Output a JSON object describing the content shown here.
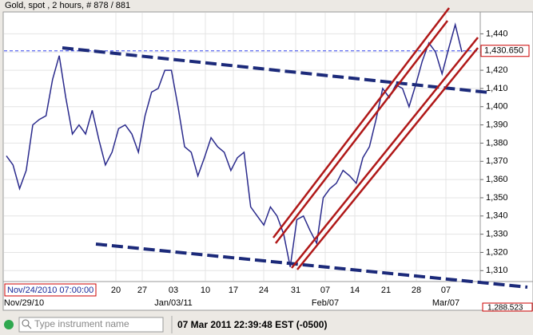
{
  "chart_data": {
    "type": "line",
    "title": "Gold, spot , 2 hours, # 878 / 881",
    "cursor_time": "Nov/24/2010 07:00:00",
    "series": [
      {
        "name": "Gold",
        "color": "#2a2a8c",
        "values": [
          1373,
          1368,
          1355,
          1365,
          1390,
          1393,
          1395,
          1415,
          1428,
          1405,
          1385,
          1390,
          1385,
          1398,
          1382,
          1368,
          1375,
          1388,
          1390,
          1385,
          1375,
          1395,
          1408,
          1410,
          1420,
          1420,
          1400,
          1378,
          1375,
          1362,
          1372,
          1383,
          1378,
          1375,
          1365,
          1372,
          1375,
          1345,
          1340,
          1335,
          1345,
          1340,
          1330,
          1312,
          1338,
          1340,
          1332,
          1325,
          1350,
          1355,
          1358,
          1365,
          1362,
          1358,
          1372,
          1378,
          1393,
          1410,
          1405,
          1412,
          1410,
          1400,
          1412,
          1425,
          1435,
          1430,
          1418,
          1432,
          1445,
          1430
        ]
      }
    ],
    "last_price": {
      "value": 1430.65,
      "label": "1,430.650"
    },
    "low_label": "1,288.523",
    "ylim": [
      1304,
      1452
    ],
    "yticks": [
      {
        "value": 1310,
        "label": "1,310"
      },
      {
        "value": 1320,
        "label": "1,320"
      },
      {
        "value": 1330,
        "label": "1,330"
      },
      {
        "value": 1340,
        "label": "1,340"
      },
      {
        "value": 1350,
        "label": "1,350"
      },
      {
        "value": 1360,
        "label": "1,360"
      },
      {
        "value": 1370,
        "label": "1,370"
      },
      {
        "value": 1380,
        "label": "1,380"
      },
      {
        "value": 1390,
        "label": "1,390"
      },
      {
        "value": 1400,
        "label": "1,400"
      },
      {
        "value": 1410,
        "label": "1,410"
      },
      {
        "value": 1420,
        "label": "1,420"
      },
      {
        "value": 1430,
        "label": "1,430"
      },
      {
        "value": 1440,
        "label": "1,440"
      }
    ],
    "xtick_labels": [
      "20",
      "27",
      "03",
      "10",
      "17",
      "24",
      "31",
      "07",
      "14",
      "21",
      "28",
      "07"
    ],
    "xtick_major_labels": [
      "Nov/29/10",
      "Jan/03/11",
      "Feb/07",
      "Mar/07"
    ],
    "grid": true
  },
  "status_bar": {
    "search_placeholder": "Type instrument name",
    "clock": "07 Mar 2011 22:39:48  EST (-0500)"
  }
}
